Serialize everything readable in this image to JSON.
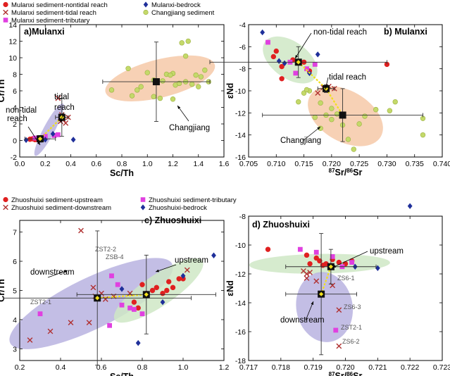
{
  "colors": {
    "sediment_red": "#e02020",
    "tidal_brown": "#b03030",
    "tributary_magenta": "#e040e0",
    "bedrock_navy": "#1f2f9a",
    "changjiang_yellowgreen": "#c4d96a",
    "green_zone": "#cfe8c6",
    "orange_zone": "#f6c9a8",
    "purple_zone": "#b8b3e0",
    "mean_marker_black": "#111111",
    "connector_yellow": "#f2e11a"
  },
  "legends": {
    "top": {
      "entries": [
        {
          "label": "Mulanxi sediment-nontidal reach",
          "symbol": "circle",
          "color": "#e02020"
        },
        {
          "label": "Mulanxi sediment-tidal reach",
          "symbol": "cross",
          "color": "#b03030"
        },
        {
          "label": "Mulanxi sediment-tributary",
          "symbol": "square",
          "color": "#e040e0"
        },
        {
          "label": "Mulanxi-bedrock",
          "symbol": "diamond",
          "color": "#1f2f9a"
        },
        {
          "label": "Changjiang sediment",
          "symbol": "circle",
          "color": "#c4d96a"
        }
      ]
    },
    "bottom": {
      "entries": [
        {
          "label": "Zhuoshuixi sediment-upstream",
          "symbol": "circle",
          "color": "#e02020"
        },
        {
          "label": "Zhuoshuixi sediment-downstream",
          "symbol": "cross",
          "color": "#b03030"
        },
        {
          "label": "Zhuoshuixi sediment-tributary",
          "symbol": "square",
          "color": "#e040e0"
        },
        {
          "label": "Zhuoshuixi-bedrock",
          "symbol": "diamond",
          "color": "#1f2f9a"
        }
      ]
    }
  },
  "chart_data": [
    {
      "panel": "a",
      "type": "scatter",
      "title": "a)Mulanxi",
      "xlabel": "Sc/Th",
      "ylabel": "Cr/Th",
      "xlim": [
        0,
        1.6
      ],
      "ylim": [
        -2,
        14
      ],
      "xticks": [
        "0.0",
        "0.2",
        "0.4",
        "0.6",
        "0.8",
        "1.0",
        "1.2",
        "1.4",
        "1.6"
      ],
      "yticks": [
        "-2",
        "0",
        "2",
        "4",
        "6",
        "8",
        "10",
        "12",
        "14"
      ],
      "annotations": [
        "non-tidal",
        "reach",
        "tidal",
        "reach",
        "Changjiang"
      ],
      "series": [
        {
          "name": "Mulanxi sediment-nontidal reach",
          "points": [
            [
              0.1,
              0.2
            ],
            [
              0.12,
              0.1
            ],
            [
              0.15,
              0.3
            ],
            [
              0.18,
              0.2
            ],
            [
              0.08,
              0.15
            ]
          ]
        },
        {
          "name": "Mulanxi sediment-tidal reach",
          "points": [
            [
              0.3,
              5.1
            ],
            [
              0.32,
              2.3
            ],
            [
              0.34,
              2.5
            ],
            [
              0.36,
              2.1
            ],
            [
              0.38,
              2.8
            ],
            [
              0.33,
              3.1
            ]
          ]
        },
        {
          "name": "Mulanxi sediment-tributary",
          "points": [
            [
              0.12,
              0.3
            ],
            [
              0.2,
              0.5
            ],
            [
              0.27,
              0.6
            ],
            [
              0.3,
              0.7
            ]
          ]
        },
        {
          "name": "Mulanxi-bedrock",
          "points": [
            [
              0.05,
              0.05
            ],
            [
              0.2,
              0.1
            ],
            [
              0.42,
              0.1
            ],
            [
              0.26,
              0.8
            ]
          ]
        },
        {
          "name": "Changjiang sediment",
          "points": [
            [
              0.72,
              6.1
            ],
            [
              0.85,
              8.7
            ],
            [
              0.88,
              5.4
            ],
            [
              0.95,
              6.5
            ],
            [
              1.0,
              8.2
            ],
            [
              1.05,
              7.3
            ],
            [
              1.1,
              5.1
            ],
            [
              1.12,
              7.2
            ],
            [
              1.15,
              8.0
            ],
            [
              1.2,
              5.0
            ],
            [
              1.22,
              6.7
            ],
            [
              1.25,
              6.9
            ],
            [
              1.27,
              11.8
            ],
            [
              1.3,
              10.2
            ],
            [
              1.32,
              12.0
            ],
            [
              1.35,
              6.8
            ],
            [
              1.38,
              7.9
            ],
            [
              1.42,
              7.7
            ],
            [
              1.45,
              8.5
            ],
            [
              1.48,
              7.1
            ],
            [
              1.2,
              8.1
            ],
            [
              1.05,
              5.3
            ],
            [
              0.92,
              6.1
            ],
            [
              1.3,
              7.1
            ],
            [
              1.4,
              6.5
            ],
            [
              1.18,
              7.9
            ]
          ]
        }
      ],
      "means": [
        {
          "name": "non-tidal reach",
          "x": 0.16,
          "y": 0.2,
          "xerr": 0.12,
          "yerr": 0.4
        },
        {
          "name": "tidal reach",
          "x": 0.33,
          "y": 2.8,
          "xerr": 0.05,
          "yerr": 2.3
        },
        {
          "name": "Changjiang",
          "x": 1.07,
          "y": 7.1,
          "xerr": 0.42,
          "yerr": 4.8
        }
      ]
    },
    {
      "panel": "b",
      "type": "scatter",
      "title": "b) Mulanxi",
      "xlabel": "87Sr/86Sr",
      "ylabel": "εNd",
      "xlim": [
        0.705,
        0.74
      ],
      "ylim": [
        -16,
        -4
      ],
      "xticks": [
        "0.705",
        "0.710",
        "0.715",
        "0.720",
        "0.725",
        "0.730",
        "0.735",
        "0.740"
      ],
      "yticks": [
        "-4",
        "-6",
        "-8",
        "-10",
        "-12",
        "-14",
        "-16"
      ],
      "annotations": [
        "non-tidal reach",
        "tidal reach",
        "Changjiang"
      ],
      "series": [
        {
          "name": "Mulanxi sediment-nontidal reach",
          "points": [
            [
              0.71,
              -6.4
            ],
            [
              0.711,
              -7.8
            ],
            [
              0.713,
              -7.2
            ],
            [
              0.715,
              -7.4
            ],
            [
              0.716,
              -8.2
            ],
            [
              0.711,
              -8.9
            ],
            [
              0.73,
              -7.6
            ],
            [
              0.7095,
              -6.9
            ]
          ]
        },
        {
          "name": "Mulanxi sediment-tidal reach",
          "points": [
            [
              0.7185,
              -9.7
            ],
            [
              0.7195,
              -9.6
            ],
            [
              0.7205,
              -9.8
            ],
            [
              0.7175,
              -10.2
            ]
          ]
        },
        {
          "name": "Mulanxi sediment-tributary",
          "points": [
            [
              0.7085,
              -5.6
            ],
            [
              0.7125,
              -7.4
            ],
            [
              0.7155,
              -8.0
            ],
            [
              0.7135,
              -8.4
            ],
            [
              0.717,
              -7.6
            ]
          ]
        },
        {
          "name": "Mulanxi-bedrock",
          "points": [
            [
              0.7075,
              -4.7
            ],
            [
              0.7105,
              -7.3
            ],
            [
              0.7115,
              -7.5
            ],
            [
              0.7175,
              -6.7
            ],
            [
              0.716,
              -8.4
            ]
          ]
        },
        {
          "name": "Changjiang sediment",
          "points": [
            [
              0.714,
              -11.0
            ],
            [
              0.715,
              -10.2
            ],
            [
              0.716,
              -10.0
            ],
            [
              0.718,
              -11.1
            ],
            [
              0.719,
              -12.2
            ],
            [
              0.72,
              -12.6
            ],
            [
              0.721,
              -12.1
            ],
            [
              0.722,
              -13.1
            ],
            [
              0.723,
              -14.4
            ],
            [
              0.724,
              -15.3
            ],
            [
              0.725,
              -13.0
            ],
            [
              0.718,
              -13.4
            ],
            [
              0.717,
              -12.4
            ],
            [
              0.726,
              -12.3
            ],
            [
              0.728,
              -11.7
            ],
            [
              0.7305,
              -11.8
            ],
            [
              0.7315,
              -11.0
            ],
            [
              0.7365,
              -12.5
            ],
            [
              0.7365,
              -14.0
            ],
            [
              0.72,
              -11.6
            ],
            [
              0.7155,
              -9.9
            ]
          ]
        }
      ],
      "means": [
        {
          "name": "non-tidal reach",
          "x": 0.714,
          "y": -7.4,
          "xerr": 0.016,
          "yerr": 1.4
        },
        {
          "name": "tidal reach",
          "x": 0.719,
          "y": -9.8,
          "xerr": 0.0015,
          "yerr": 0.35
        },
        {
          "name": "Changjiang",
          "x": 0.722,
          "y": -12.2,
          "xerr": 0.0145,
          "yerr": 2.4
        }
      ]
    },
    {
      "panel": "c",
      "type": "scatter",
      "title": "c) Zhuoshuixi",
      "xlabel": "Sc/Th",
      "ylabel": "Cr/Th",
      "xlim": [
        0.2,
        1.2
      ],
      "ylim": [
        2.6,
        7.4
      ],
      "xticks": [
        "0.2",
        "0.4",
        "0.6",
        "0.8",
        "1.0",
        "1.2"
      ],
      "yticks": [
        "3",
        "4",
        "5",
        "6",
        "7"
      ],
      "annotations": [
        "downstream",
        "upstream"
      ],
      "sample_labels": [
        "ZST2-2",
        "ZSB-4",
        "ZST2-1"
      ],
      "series": [
        {
          "name": "Zhuoshuixi sediment-upstream",
          "points": [
            [
              0.76,
              4.6
            ],
            [
              0.78,
              4.4
            ],
            [
              0.82,
              4.9
            ],
            [
              0.85,
              5.0
            ],
            [
              0.87,
              5.1
            ],
            [
              0.9,
              4.9
            ],
            [
              0.92,
              5.0
            ],
            [
              0.95,
              5.1
            ],
            [
              0.98,
              5.4
            ],
            [
              1.0,
              5.4
            ],
            [
              0.8,
              5.2
            ],
            [
              0.93,
              5.3
            ]
          ]
        },
        {
          "name": "Zhuoshuixi sediment-downstream",
          "points": [
            [
              0.25,
              3.3
            ],
            [
              0.35,
              3.6
            ],
            [
              0.45,
              3.9
            ],
            [
              0.5,
              7.05
            ],
            [
              0.54,
              3.9
            ],
            [
              0.56,
              5.1
            ],
            [
              0.57,
              4.8
            ],
            [
              0.6,
              4.9
            ],
            [
              0.62,
              4.7
            ],
            [
              0.66,
              4.8
            ],
            [
              0.74,
              4.9
            ],
            [
              1.02,
              5.7
            ]
          ]
        },
        {
          "name": "Zhuoshuixi sediment-tributary",
          "points": [
            [
              0.3,
              4.2
            ],
            [
              0.65,
              5.5
            ],
            [
              0.68,
              5.2
            ],
            [
              0.74,
              4.4
            ],
            [
              0.76,
              4.35
            ],
            [
              0.64,
              3.8
            ],
            [
              0.8,
              4.2
            ],
            [
              0.7,
              4.5
            ]
          ]
        },
        {
          "name": "Zhuoshuixi-bedrock",
          "points": [
            [
              0.7,
              5.05
            ],
            [
              0.9,
              4.6
            ],
            [
              1.0,
              5.5
            ],
            [
              1.15,
              6.2
            ],
            [
              0.78,
              3.2
            ]
          ]
        }
      ],
      "means": [
        {
          "name": "downstream",
          "x": 0.58,
          "y": 4.74,
          "xerr": 0.46,
          "yerr": 2.3
        },
        {
          "name": "upstream",
          "x": 0.82,
          "y": 4.86,
          "xerr": 0.34,
          "yerr": 1.35
        }
      ]
    },
    {
      "panel": "d",
      "type": "scatter",
      "title": "d) Zhuoshuixi",
      "xlabel": "87Sr/86Sr",
      "ylabel": "εNd",
      "xlim": [
        0.717,
        0.723
      ],
      "ylim": [
        -18,
        -8
      ],
      "xticks": [
        "0.717",
        "0.718",
        "0.719",
        "0.720",
        "0.721",
        "0.722",
        "0.723"
      ],
      "yticks": [
        "-8",
        "-10",
        "-12",
        "-14",
        "-16",
        "-18"
      ],
      "annotations": [
        "upstream",
        "downstream"
      ],
      "sample_labels": [
        "ZS6-1",
        "ZS6-3",
        "ZST2-1",
        "ZS6-2"
      ],
      "series": [
        {
          "name": "Zhuoshuixi sediment-upstream",
          "points": [
            [
              0.7176,
              -10.3
            ],
            [
              0.7188,
              -10.7
            ],
            [
              0.7191,
              -10.9
            ],
            [
              0.7192,
              -11.1
            ],
            [
              0.7194,
              -11.3
            ],
            [
              0.7196,
              -11.0
            ],
            [
              0.7198,
              -11.2
            ],
            [
              0.72,
              -11.3
            ],
            [
              0.7202,
              -11.1
            ],
            [
              0.7193,
              -11.4
            ],
            [
              0.7189,
              -11.3
            ]
          ]
        },
        {
          "name": "Zhuoshuixi sediment-downstream",
          "points": [
            [
              0.7187,
              -11.8
            ],
            [
              0.7188,
              -12.0
            ],
            [
              0.7188,
              -12.3
            ],
            [
              0.7189,
              -11.9
            ],
            [
              0.7196,
              -12.8
            ],
            [
              0.7198,
              -14.5
            ],
            [
              0.7198,
              -17.0
            ],
            [
              0.7191,
              -12.5
            ]
          ]
        },
        {
          "name": "Zhuoshuixi sediment-tributary",
          "points": [
            [
              0.7186,
              -10.3
            ],
            [
              0.7191,
              -10.5
            ],
            [
              0.7196,
              -10.8
            ],
            [
              0.7202,
              -11.2
            ],
            [
              0.7199,
              -11.5
            ],
            [
              0.7197,
              -15.9
            ]
          ]
        },
        {
          "name": "Zhuoshuixi-bedrock",
          "points": [
            [
              0.7203,
              -11.5
            ],
            [
              0.721,
              -11.6
            ],
            [
              0.722,
              -7.3
            ]
          ]
        }
      ],
      "means": [
        {
          "name": "upstream",
          "x": 0.71955,
          "y": -11.5,
          "xerr": 0.0014,
          "yerr": 1.2
        },
        {
          "name": "downstream",
          "x": 0.71925,
          "y": -13.4,
          "xerr": 0.0011,
          "yerr": 4.2
        }
      ]
    }
  ]
}
